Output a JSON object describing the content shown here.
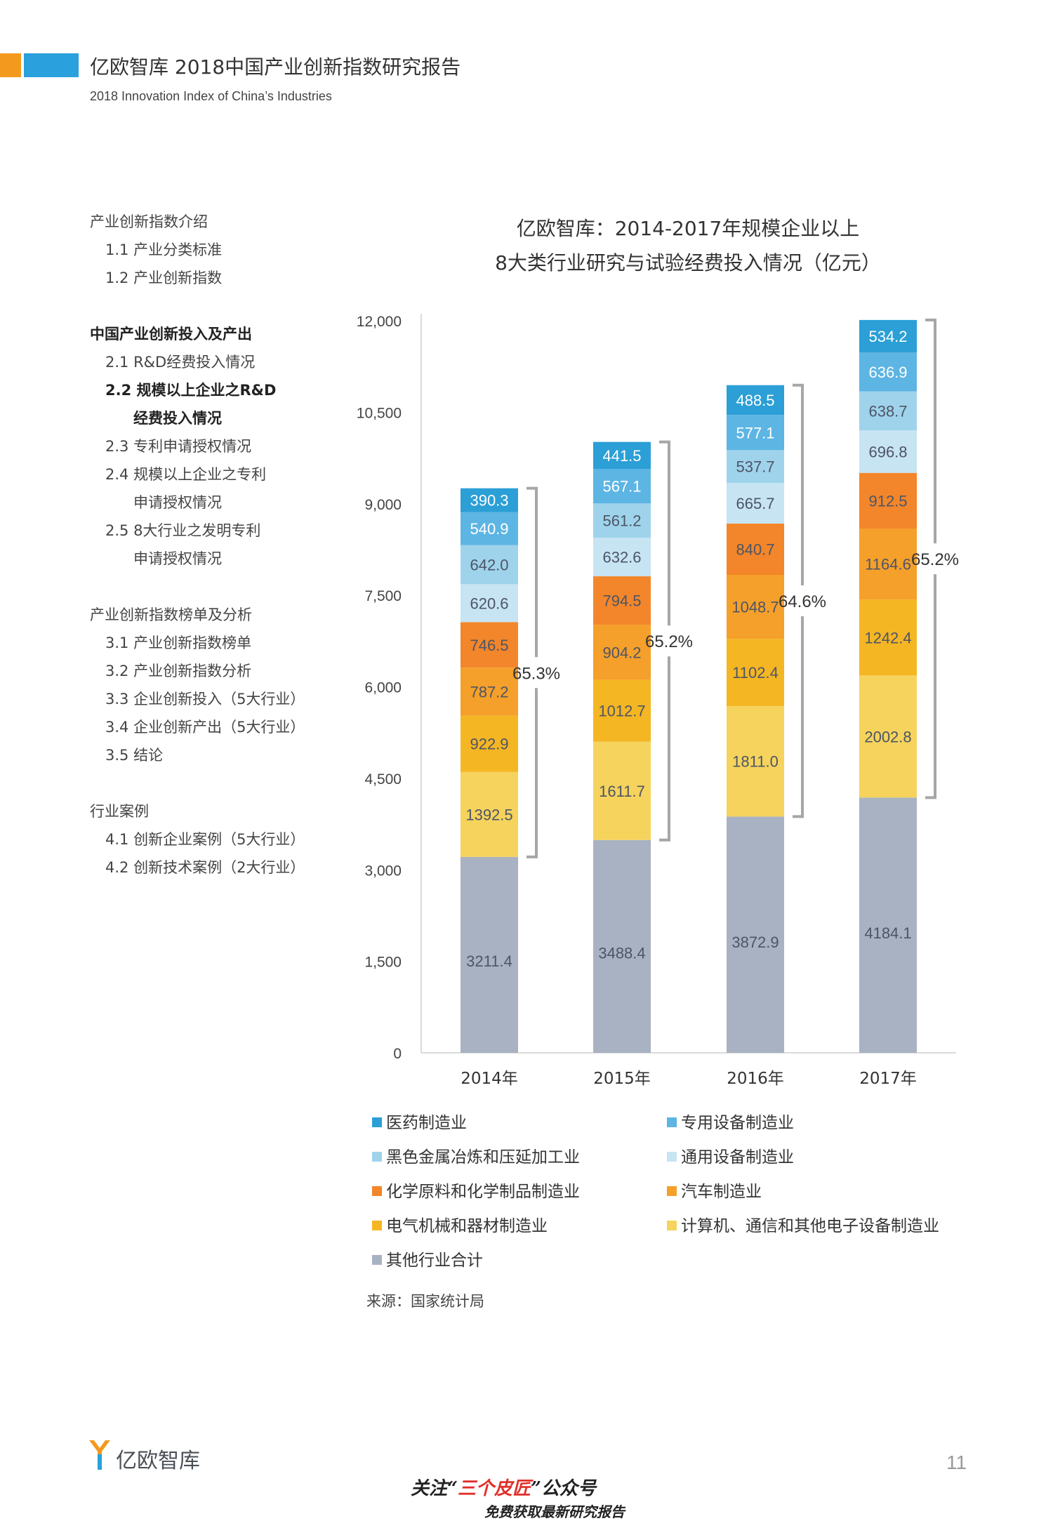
{
  "header": {
    "title": "亿欧智库 2018中国产业创新指数研究报告",
    "subtitle": "2018 Innovation Index of China’s Industries",
    "colors": {
      "orange": "#f39a1e",
      "blue": "#2aa0dc"
    }
  },
  "toc": [
    {
      "text": "产业创新指数介绍",
      "indent": 0,
      "bold": false,
      "top": 0
    },
    {
      "text": "1.1 产业分类标准",
      "indent": 1,
      "bold": false,
      "top": 0
    },
    {
      "text": "1.2 产业创新指数",
      "indent": 1,
      "bold": false,
      "top": 0
    },
    {
      "text": "中国产业创新投入及产出",
      "indent": 0,
      "bold": true,
      "top": 0
    },
    {
      "text": "2.1 R&D经费投入情况",
      "indent": 1,
      "bold": false,
      "top": 0
    },
    {
      "text": "2.2 规模以上企业之R&D",
      "indent": 1,
      "bold": true,
      "top": 0
    },
    {
      "text": "经费投入情况",
      "indent": 2,
      "bold": true,
      "top": 0
    },
    {
      "text": "2.3 专利申请授权情况",
      "indent": 1,
      "bold": false,
      "top": 0
    },
    {
      "text": "2.4 规模以上企业之专利",
      "indent": 1,
      "bold": false,
      "top": 0
    },
    {
      "text": "申请授权情况",
      "indent": 2,
      "bold": false,
      "top": 0
    },
    {
      "text": "2.5 8大行业之发明专利",
      "indent": 1,
      "bold": false,
      "top": 0
    },
    {
      "text": "申请授权情况",
      "indent": 2,
      "bold": false,
      "top": 0
    },
    {
      "text": "产业创新指数榜单及分析",
      "indent": 0,
      "bold": false,
      "top": 0
    },
    {
      "text": "3.1 产业创新指数榜单",
      "indent": 1,
      "bold": false,
      "top": 0
    },
    {
      "text": "3.2 产业创新指数分析",
      "indent": 1,
      "bold": false,
      "top": 0
    },
    {
      "text": "3.3 企业创新投入（5大行业）",
      "indent": 1,
      "bold": false,
      "top": 0
    },
    {
      "text": "3.4 企业创新产出（5大行业）",
      "indent": 1,
      "bold": false,
      "top": 0
    },
    {
      "text": "3.5 结论",
      "indent": 1,
      "bold": false,
      "top": 0
    },
    {
      "text": "行业案例",
      "indent": 0,
      "bold": false,
      "top": 0
    },
    {
      "text": "4.1 创新企业案例（5大行业）",
      "indent": 1,
      "bold": false,
      "top": 0
    },
    {
      "text": "4.2 创新技术案例（2大行业）",
      "indent": 1,
      "bold": false,
      "top": 0
    }
  ],
  "chart_data": {
    "type": "bar",
    "stacked": true,
    "title_line1": "亿欧智库：2014-2017年规模企业以上",
    "title_line2": "8大类行业研究与试验经费投入情况（亿元）",
    "categories": [
      "2014年",
      "2015年",
      "2016年",
      "2017年"
    ],
    "ylim": [
      0,
      12000
    ],
    "yticks": [
      0,
      1500,
      3000,
      4500,
      6000,
      7500,
      9000,
      10500,
      12000
    ],
    "ytick_labels": [
      "0",
      "1,500",
      "3,000",
      "4,500",
      "6,000",
      "7,500",
      "9,000",
      "10,500",
      "12,000"
    ],
    "series": [
      {
        "name": "其他行业合计",
        "color": "#a9b2c3",
        "values": [
          3211.4,
          3488.4,
          3872.9,
          4184.1
        ],
        "labels": [
          "3211.4",
          "3488.4",
          "3872.9",
          "4184.1"
        ]
      },
      {
        "name": "计算机、通信和其他电子设备制造业",
        "color": "#f5d35c",
        "values": [
          1392.5,
          1611.7,
          1811.0,
          2002.8
        ],
        "labels": [
          "1392.5",
          "1611.7",
          "1811.0",
          "2002.8"
        ]
      },
      {
        "name": "电气机械和器材制造业",
        "color": "#f5b623",
        "values": [
          922.9,
          1012.7,
          1102.4,
          1242.4
        ],
        "labels": [
          "922.9",
          "1012.7",
          "1102.4",
          "1242.4"
        ]
      },
      {
        "name": "汽车制造业",
        "color": "#f5a02a",
        "values": [
          787.2,
          904.2,
          1048.7,
          1164.6
        ],
        "labels": [
          "787.2",
          "904.2",
          "1048.7",
          "1164.6"
        ]
      },
      {
        "name": "化学原料和化学制品制造业",
        "color": "#f3862a",
        "values": [
          746.5,
          794.5,
          840.7,
          912.5
        ],
        "labels": [
          "746.5",
          "794.5",
          "840.7",
          "912.5"
        ]
      },
      {
        "name": "通用设备制造业",
        "color": "#c7e4f3",
        "values": [
          620.6,
          632.6,
          665.7,
          696.8
        ],
        "labels": [
          "620.6",
          "632.6",
          "665.7",
          "696.8"
        ]
      },
      {
        "name": "黑色金属冶炼和压延加工业",
        "color": "#9fd3ec",
        "values": [
          642.0,
          561.2,
          537.7,
          638.7
        ],
        "labels": [
          "642.0",
          "561.2",
          "537.7",
          "638.7"
        ]
      },
      {
        "name": "专用设备制造业",
        "color": "#5db5e3",
        "values": [
          540.9,
          567.1,
          577.1,
          636.9
        ],
        "labels": [
          "540.9",
          "567.1",
          "577.1",
          "636.9"
        ]
      },
      {
        "name": "医药制造业",
        "color": "#2b9fd6",
        "values": [
          390.3,
          441.5,
          488.5,
          534.2
        ],
        "labels": [
          "390.3",
          "441.5",
          "488.5",
          "534.2"
        ]
      }
    ],
    "brackets": [
      "65.3%",
      "65.2%",
      "64.6%",
      "65.2%"
    ],
    "legend": [
      {
        "name": "医药制造业",
        "color": "#2b9fd6"
      },
      {
        "name": "专用设备制造业",
        "color": "#5db5e3"
      },
      {
        "name": "黑色金属冶炼和压延加工业",
        "color": "#9fd3ec"
      },
      {
        "name": "通用设备制造业",
        "color": "#c7e4f3"
      },
      {
        "name": "化学原料和化学制品制造业",
        "color": "#f3862a"
      },
      {
        "name": "汽车制造业",
        "color": "#f5a02a"
      },
      {
        "name": "电气机械和器材制造业",
        "color": "#f5b623"
      },
      {
        "name": "计算机、通信和其他电子设备制造业",
        "color": "#f5d35c"
      },
      {
        "name": "其他行业合计",
        "color": "#a9b2c3"
      }
    ],
    "source": "来源：国家统计局"
  },
  "footer": {
    "logo_text": "亿欧智库",
    "page_number": "11",
    "watermark_pre": "关注“",
    "watermark_red": "三个皮匠",
    "watermark_post": "”公众号",
    "watermark_line2": "免费获取最新研究报告"
  }
}
